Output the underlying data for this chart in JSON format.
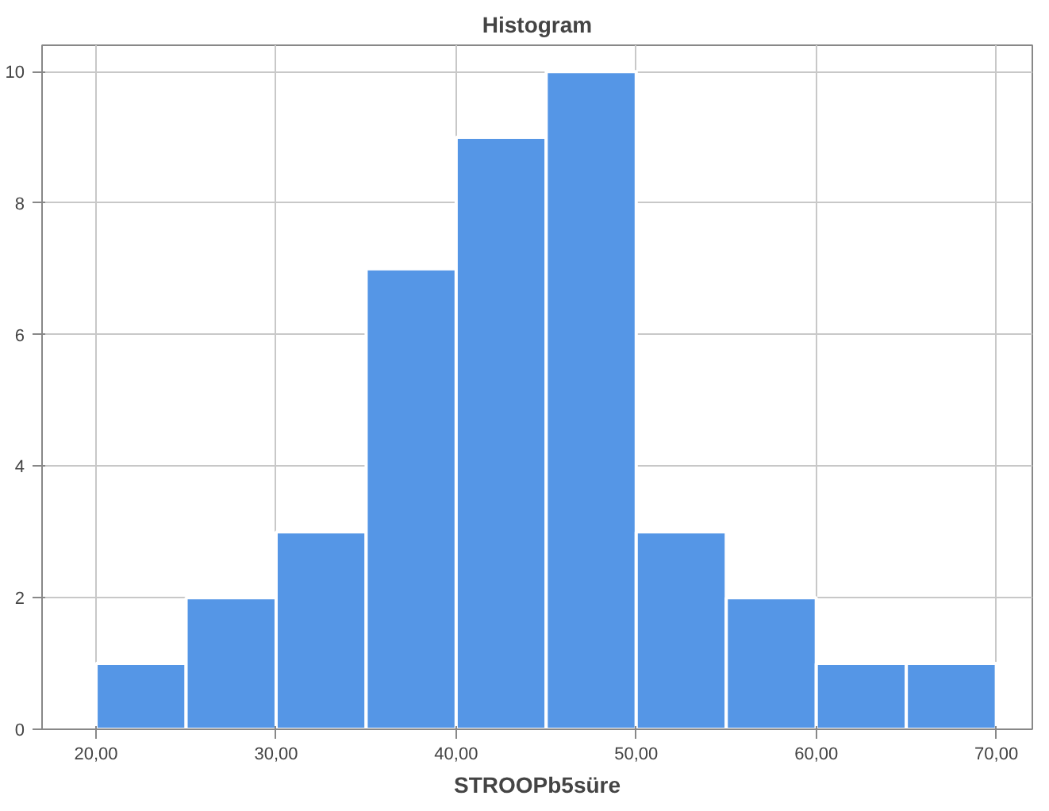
{
  "chart_data": {
    "type": "histogram",
    "title": "Histogram",
    "xlabel": "STROOPb5süre",
    "bins": [
      20,
      25,
      30,
      35,
      40,
      45,
      50,
      55,
      60,
      65,
      70
    ],
    "values": [
      1,
      2,
      3,
      7,
      9,
      10,
      3,
      2,
      1,
      1
    ],
    "color": "#5596e6",
    "xlim": [
      17,
      72
    ],
    "ylim": [
      0,
      10.4
    ],
    "xticks": [
      {
        "value": 20,
        "label": "20,00"
      },
      {
        "value": 30,
        "label": "30,00"
      },
      {
        "value": 40,
        "label": "40,00"
      },
      {
        "value": 50,
        "label": "50,00"
      },
      {
        "value": 60,
        "label": "60,00"
      },
      {
        "value": 70,
        "label": "70,00"
      }
    ],
    "yticks": [
      0,
      2,
      4,
      6,
      8,
      10
    ],
    "grid": true
  }
}
